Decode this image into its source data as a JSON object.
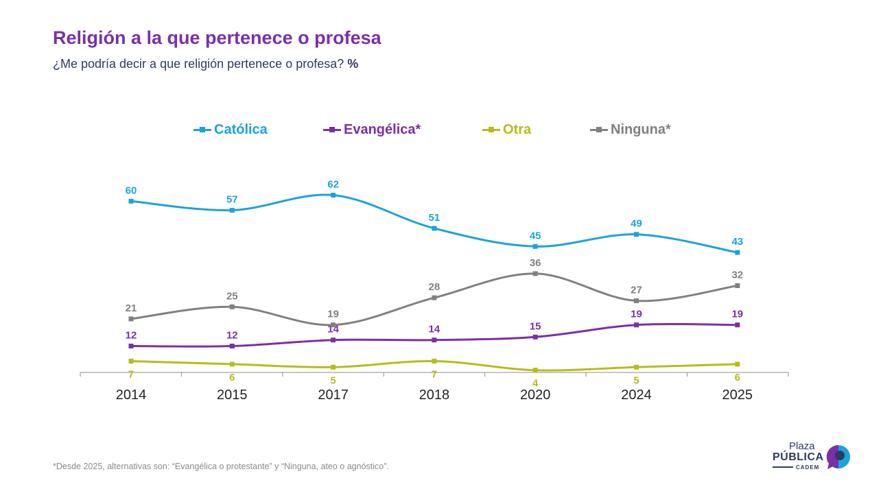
{
  "header": {
    "title": "Religión a la que pertenece o profesa",
    "subtitle": "¿Me podría decir a que religión pertenece o profesa?",
    "subtitle_unit": "%"
  },
  "legend": [
    {
      "label": "Católica",
      "color": "#1ba3dc"
    },
    {
      "label": "Evangélica*",
      "color": "#7b2fa6"
    },
    {
      "label": "Otra",
      "color": "#b5bd18"
    },
    {
      "label": "Ninguna*",
      "color": "#808080"
    }
  ],
  "chart_data": {
    "type": "line",
    "categories": [
      "2014",
      "2015",
      "2017",
      "2018",
      "2020",
      "2024",
      "2025"
    ],
    "ylim": [
      0,
      70
    ],
    "grid": false,
    "legend_position": "top",
    "series": [
      {
        "name": "Católica",
        "color": "#1ba3dc",
        "values": [
          60,
          57,
          62,
          51,
          45,
          49,
          43
        ]
      },
      {
        "name": "Evangélica*",
        "color": "#7b2fa6",
        "values": [
          12,
          12,
          14,
          14,
          15,
          19,
          19
        ]
      },
      {
        "name": "Otra",
        "color": "#b5bd18",
        "values": [
          7,
          6,
          5,
          7,
          4,
          5,
          6
        ]
      },
      {
        "name": "Ninguna*",
        "color": "#808080",
        "values": [
          21,
          25,
          19,
          28,
          36,
          27,
          32
        ]
      }
    ]
  },
  "footnote": "*Desde 2025, alternativas son: “Evangélica o protestante” y “Ninguna, ateo o agnóstico”.",
  "logo": {
    "line1": "Plaza",
    "line2": "PÚBLICA",
    "line3": "CADEM",
    "accent": "#1ba3dc",
    "accent2": "#7b2fa6"
  }
}
